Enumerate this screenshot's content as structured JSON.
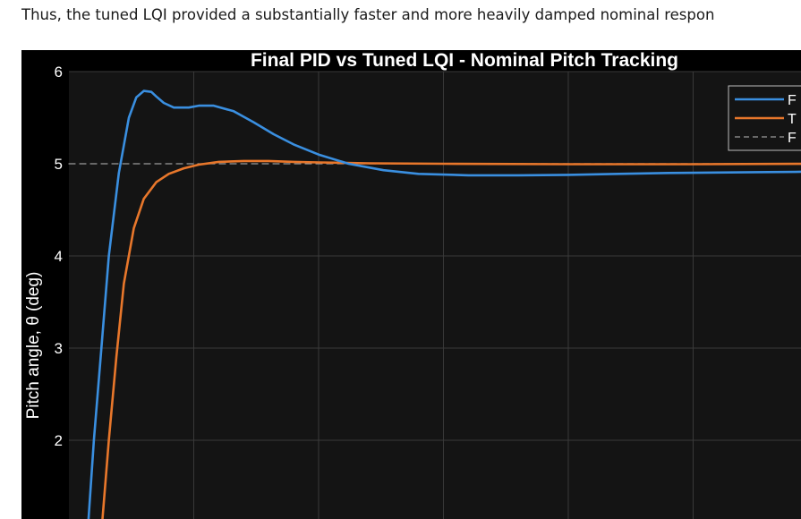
{
  "document": {
    "paragraph": "Thus, the tuned LQI provided a substantially faster and more heavily damped nominal respon"
  },
  "chart_data": {
    "type": "line",
    "title": "Final PID vs Tuned LQI - Nominal Pitch Tracking",
    "ylabel": "Pitch angle, θ (deg)",
    "xlabel": "",
    "ylim": [
      1,
      6
    ],
    "yticks": [
      2,
      3,
      4,
      5,
      6
    ],
    "ytick_labels": [
      "2",
      "3",
      "4",
      "5",
      "6"
    ],
    "x_gridlines": [
      0.5,
      1.0,
      1.5,
      2.0,
      2.5,
      3.0
    ],
    "grid": true,
    "legend_position": "top-right",
    "background": "#141414",
    "series": [
      {
        "name": "",
        "legend_text": "F",
        "color": "#3a8fe0",
        "style": "solid",
        "x": [
          0.075,
          0.1,
          0.13,
          0.16,
          0.2,
          0.24,
          0.27,
          0.3,
          0.33,
          0.35,
          0.38,
          0.42,
          0.48,
          0.52,
          0.58,
          0.66,
          0.74,
          0.82,
          0.9,
          1.0,
          1.12,
          1.26,
          1.4,
          1.6,
          1.8,
          2.0,
          2.2,
          2.4,
          2.6,
          2.8,
          3.0,
          3.14
        ],
        "values": [
          1.0,
          2.0,
          3.0,
          4.0,
          4.9,
          5.5,
          5.72,
          5.79,
          5.78,
          5.73,
          5.66,
          5.61,
          5.61,
          5.63,
          5.63,
          5.57,
          5.45,
          5.32,
          5.21,
          5.1,
          5.0,
          4.93,
          4.89,
          4.875,
          4.875,
          4.88,
          4.89,
          4.9,
          4.905,
          4.91,
          4.915,
          4.92
        ]
      },
      {
        "name": "",
        "legend_text": "T",
        "color": "#e8772b",
        "style": "solid",
        "x": [
          0.13,
          0.16,
          0.19,
          0.22,
          0.26,
          0.3,
          0.35,
          0.4,
          0.46,
          0.52,
          0.6,
          0.7,
          0.8,
          0.9,
          1.0,
          1.2,
          1.5,
          2.0,
          2.5,
          3.0,
          3.14
        ],
        "values": [
          1.0,
          2.0,
          2.9,
          3.7,
          4.3,
          4.62,
          4.8,
          4.89,
          4.95,
          4.99,
          5.02,
          5.03,
          5.03,
          5.02,
          5.015,
          5.005,
          5.0,
          4.995,
          4.995,
          5.0,
          5.0
        ]
      },
      {
        "name": "",
        "legend_text": "F",
        "color": "#9a9a9a",
        "style": "dashed",
        "x": [
          0.0,
          3.14
        ],
        "values": [
          5.0,
          5.0
        ]
      }
    ]
  }
}
